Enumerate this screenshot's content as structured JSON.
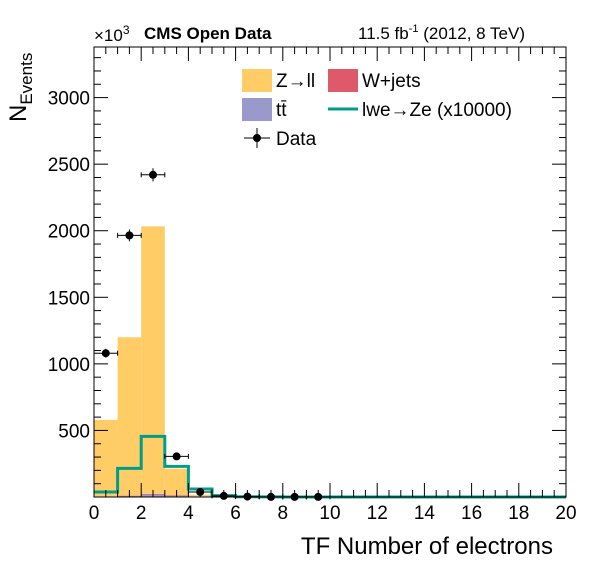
{
  "chart_data": {
    "type": "bar",
    "title": "CMS Open Data",
    "lumi_text": "11.5 fb",
    "lumi_sup": "-1",
    "lumi_tail": " (2012, 8 TeV)",
    "xlabel": "TF Number of electrons",
    "ylabel_main": "N",
    "ylabel_sub": "Events",
    "exponent_base": "×10",
    "exponent_pow": "3",
    "xlim": [
      0,
      20
    ],
    "ylim": [
      0,
      3380
    ],
    "x_ticks": [
      "0",
      "2",
      "4",
      "6",
      "8",
      "10",
      "12",
      "14",
      "16",
      "18",
      "20"
    ],
    "y_ticks": [
      "500",
      "1000",
      "1500",
      "2000",
      "2500",
      "3000"
    ],
    "bin_edges": [
      0,
      1,
      2,
      3,
      4,
      5,
      6,
      7,
      8,
      9,
      10,
      11,
      12,
      13,
      14,
      15,
      16,
      17,
      18,
      19,
      20
    ],
    "colors": {
      "zll": "#ffcc66",
      "wjets": "#de5a6a",
      "ttbar": "#9999cc",
      "signal": "#009e8a",
      "data": "#000000"
    },
    "series": [
      {
        "name": "Z→ll",
        "kind": "stack",
        "values": [
          575,
          1190,
          2010,
          200,
          12,
          3,
          1,
          0,
          0,
          0,
          0,
          0,
          0,
          0,
          0,
          0,
          0,
          0,
          0,
          0
        ]
      },
      {
        "name": "tt̄",
        "kind": "stack",
        "values": [
          3,
          8,
          20,
          12,
          5,
          1,
          0,
          0,
          0,
          0,
          0,
          0,
          0,
          0,
          0,
          0,
          0,
          0,
          0,
          0
        ]
      },
      {
        "name": "W+jets",
        "kind": "stack",
        "values": [
          1,
          2,
          3,
          1,
          0,
          0,
          0,
          0,
          0,
          0,
          0,
          0,
          0,
          0,
          0,
          0,
          0,
          0,
          0,
          0
        ]
      },
      {
        "name": "lwe→Ze (x10000)",
        "kind": "line",
        "values": [
          38,
          215,
          455,
          230,
          60,
          10,
          2,
          1,
          0,
          0,
          0,
          0,
          0,
          0,
          0,
          0,
          0,
          0,
          0,
          0
        ]
      }
    ],
    "data_points": {
      "name": "Data",
      "x": [
        0.5,
        1.5,
        2.5,
        3.5,
        4.5,
        5.5,
        6.5,
        7.5,
        8.5,
        9.5
      ],
      "y": [
        1080,
        1965,
        2420,
        305,
        38,
        8,
        3,
        1,
        1,
        1
      ]
    },
    "legend": [
      {
        "label": "Z→ll",
        "type": "box",
        "color": "zll"
      },
      {
        "label": "W+jets",
        "type": "box",
        "color": "wjets"
      },
      {
        "label": "tt̄",
        "type": "box",
        "color": "ttbar"
      },
      {
        "label": "lwe→Ze (x10000)",
        "type": "line",
        "color": "signal"
      },
      {
        "label": "Data",
        "type": "marker",
        "color": "data"
      }
    ],
    "legend_position": "top-center",
    "grid": false
  }
}
